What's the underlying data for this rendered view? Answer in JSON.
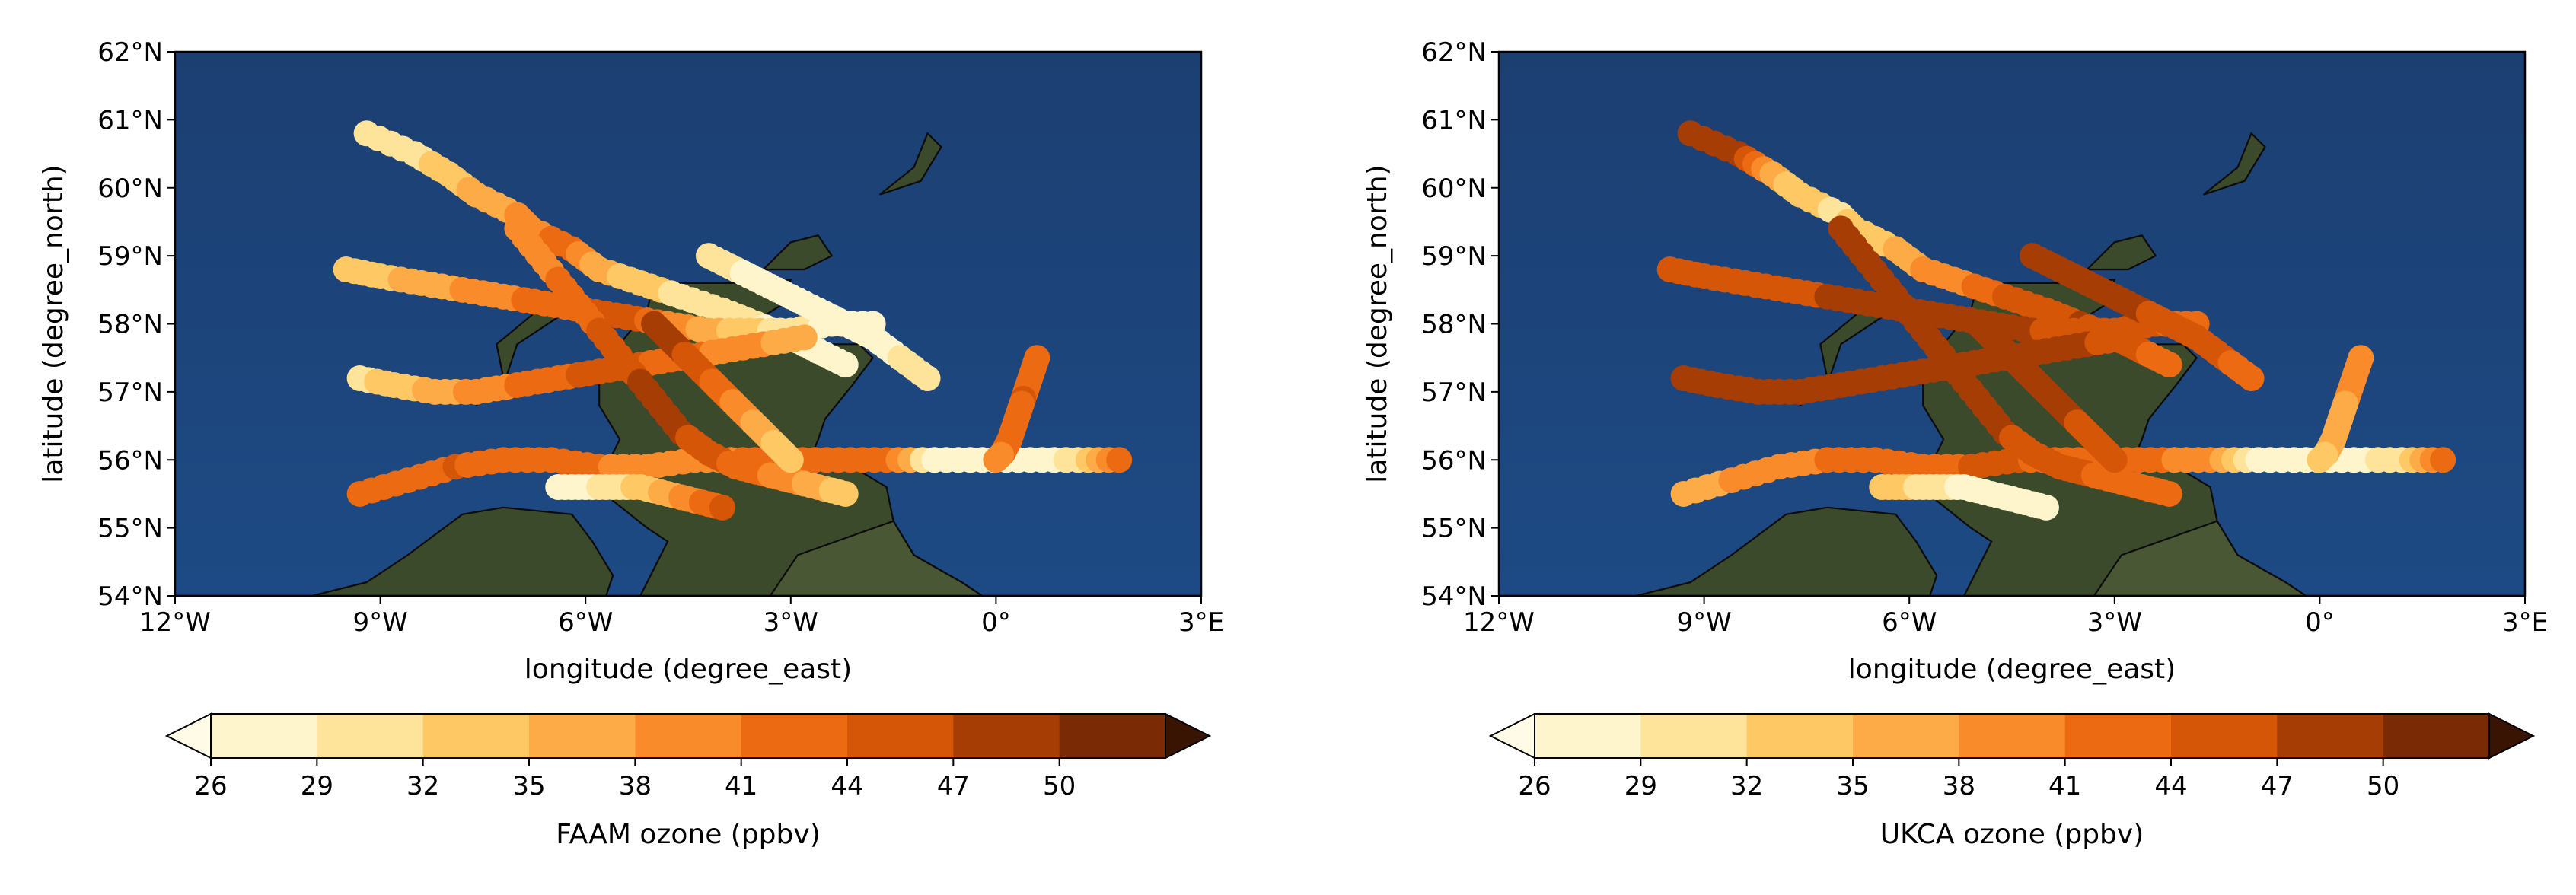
{
  "chart_data": [
    {
      "type": "scatter",
      "map": true,
      "xlabel": "longitude (degree_east)",
      "ylabel": "latitude (degree_north)",
      "xlim": [
        -12,
        3
      ],
      "ylim": [
        54,
        62
      ],
      "xticks": [
        -12,
        -9,
        -6,
        -3,
        0,
        3
      ],
      "xtick_labels": [
        "12°W",
        "9°W",
        "6°W",
        "3°W",
        "0°",
        "3°E"
      ],
      "yticks": [
        54,
        55,
        56,
        57,
        58,
        59,
        60,
        61,
        62
      ],
      "ytick_labels": [
        "54°N",
        "55°N",
        "56°N",
        "57°N",
        "58°N",
        "59°N",
        "60°N",
        "61°N",
        "62°N"
      ],
      "colorbar": {
        "label": "FAAM ozone (ppbv)",
        "levels": [
          26,
          29,
          32,
          35,
          38,
          41,
          44,
          47,
          50
        ],
        "tick_labels": [
          "26",
          "29",
          "32",
          "35",
          "38",
          "41",
          "44",
          "47",
          "50"
        ],
        "colors": [
          "#fff5cc",
          "#fee39b",
          "#fec965",
          "#fdab46",
          "#f98b2a",
          "#ec6b12",
          "#d55607",
          "#a63d05",
          "#7a2a04"
        ],
        "extend": "both"
      },
      "series": [
        {
          "lon": [
            -9.2,
            -8.5,
            -8.0,
            -7.6,
            -7.0,
            -6.8,
            -6.2,
            -5.8,
            -5.2,
            -4.6,
            -4.0,
            -3.5,
            -3.0,
            -2.6,
            -2.2
          ],
          "lat": [
            60.8,
            60.5,
            60.2,
            59.9,
            59.6,
            59.4,
            59.1,
            58.8,
            58.6,
            58.4,
            58.2,
            58.0,
            57.8,
            57.6,
            57.4
          ],
          "ozone": [
            29,
            31,
            33,
            36,
            38,
            40,
            42,
            36,
            33,
            31,
            30,
            29,
            28,
            27,
            27
          ]
        },
        {
          "lon": [
            -9.5,
            -9.0,
            -8.4,
            -7.8,
            -7.2,
            -6.6,
            -6.0,
            -5.4,
            -4.8,
            -4.2,
            -3.6,
            -3.0,
            -2.4,
            -1.8
          ],
          "lat": [
            58.8,
            58.7,
            58.6,
            58.5,
            58.4,
            58.3,
            58.2,
            58.1,
            58.0,
            57.9,
            57.9,
            57.9,
            58.0,
            58.0
          ],
          "ozone": [
            33,
            34,
            36,
            38,
            40,
            42,
            44,
            46,
            40,
            36,
            33,
            30,
            28,
            27
          ]
        },
        {
          "lon": [
            -9.3,
            -8.8,
            -8.2,
            -7.6,
            -7.0,
            -6.4,
            -5.8,
            -5.2,
            -4.6,
            -4.0,
            -3.4,
            -2.8
          ],
          "lat": [
            57.2,
            57.1,
            57.0,
            57.0,
            57.1,
            57.2,
            57.3,
            57.4,
            57.5,
            57.6,
            57.7,
            57.8
          ],
          "ozone": [
            31,
            33,
            36,
            39,
            41,
            43,
            45,
            44,
            42,
            40,
            38,
            36
          ]
        },
        {
          "lon": [
            -9.3,
            -8.6,
            -7.9,
            -7.2,
            -6.5,
            -5.8,
            -5.1,
            -4.4,
            -3.7,
            -3.0,
            -2.3,
            -1.6,
            -0.9,
            -0.2,
            0.5,
            1.2,
            1.8
          ],
          "lat": [
            55.5,
            55.7,
            55.9,
            56.0,
            56.0,
            55.9,
            55.9,
            56.0,
            56.0,
            56.0,
            56.0,
            56.0,
            56.0,
            56.0,
            56.0,
            56.0,
            56.0
          ],
          "ozone": [
            42,
            43,
            44,
            43,
            42,
            41,
            40,
            40,
            41,
            42,
            42,
            43,
            28,
            27,
            27,
            30,
            43
          ]
        },
        {
          "lon": [
            -7.0,
            -6.6,
            -6.2,
            -5.8,
            -5.4,
            -5.0,
            -4.6,
            -4.2,
            -3.8,
            -3.4,
            -3.0,
            -2.6,
            -2.2
          ],
          "lat": [
            59.4,
            58.9,
            58.4,
            57.9,
            57.4,
            56.9,
            56.4,
            56.1,
            55.9,
            55.8,
            55.7,
            55.6,
            55.5
          ],
          "ozone": [
            38,
            40,
            42,
            44,
            46,
            48,
            47,
            45,
            43,
            41,
            39,
            36,
            33
          ]
        },
        {
          "lon": [
            -4.2,
            -3.8,
            -3.4,
            -3.0,
            -2.6,
            -2.2,
            -1.8,
            -1.4,
            -1.0
          ],
          "lat": [
            59.0,
            58.8,
            58.6,
            58.4,
            58.2,
            58.0,
            57.8,
            57.5,
            57.2
          ],
          "ozone": [
            30,
            29,
            28,
            28,
            27,
            27,
            28,
            29,
            30
          ]
        },
        {
          "lon": [
            0.6,
            0.5,
            0.4,
            0.3,
            0.2,
            0.1,
            0.0
          ],
          "lat": [
            57.5,
            57.2,
            56.9,
            56.6,
            56.3,
            56.1,
            56.0
          ],
          "ozone": [
            43,
            43,
            44,
            43,
            42,
            41,
            40
          ]
        },
        {
          "lon": [
            -5.0,
            -4.8,
            -4.6,
            -4.4,
            -4.2,
            -4.0,
            -3.8,
            -3.6,
            -3.4,
            -3.2,
            -3.0
          ],
          "lat": [
            58.0,
            57.8,
            57.6,
            57.4,
            57.2,
            57.0,
            56.8,
            56.6,
            56.4,
            56.2,
            56.0
          ],
          "ozone": [
            48,
            48,
            47,
            46,
            44,
            42,
            40,
            38,
            36,
            34,
            32
          ]
        },
        {
          "lon": [
            -6.4,
            -6.0,
            -5.6,
            -5.2,
            -4.8,
            -4.4,
            -4.0
          ],
          "lat": [
            55.6,
            55.6,
            55.6,
            55.6,
            55.5,
            55.4,
            55.3
          ],
          "ozone": [
            27,
            28,
            30,
            33,
            36,
            40,
            44
          ]
        }
      ]
    },
    {
      "type": "scatter",
      "map": true,
      "xlabel": "longitude (degree_east)",
      "ylabel": "latitude (degree_north)",
      "xlim": [
        -12,
        3
      ],
      "ylim": [
        54,
        62
      ],
      "xticks": [
        -12,
        -9,
        -6,
        -3,
        0,
        3
      ],
      "xtick_labels": [
        "12°W",
        "9°W",
        "6°W",
        "3°W",
        "0°",
        "3°E"
      ],
      "yticks": [
        54,
        55,
        56,
        57,
        58,
        59,
        60,
        61,
        62
      ],
      "ytick_labels": [
        "54°N",
        "55°N",
        "56°N",
        "57°N",
        "58°N",
        "59°N",
        "60°N",
        "61°N",
        "62°N"
      ],
      "colorbar": {
        "label": "UKCA ozone (ppbv)",
        "levels": [
          26,
          29,
          32,
          35,
          38,
          41,
          44,
          47,
          50
        ],
        "tick_labels": [
          "26",
          "29",
          "32",
          "35",
          "38",
          "41",
          "44",
          "47",
          "50"
        ],
        "colors": [
          "#fff5cc",
          "#fee39b",
          "#fec965",
          "#fdab46",
          "#f98b2a",
          "#ec6b12",
          "#d55607",
          "#a63d05",
          "#7a2a04"
        ],
        "extend": "both"
      },
      "series": [
        {
          "lon": [
            -9.2,
            -8.5,
            -8.0,
            -7.6,
            -7.0,
            -6.8,
            -6.2,
            -5.8,
            -5.2,
            -4.6,
            -4.0,
            -3.5,
            -3.0,
            -2.6,
            -2.2
          ],
          "lat": [
            60.8,
            60.5,
            60.2,
            59.9,
            59.6,
            59.4,
            59.1,
            58.8,
            58.6,
            58.4,
            58.2,
            58.0,
            57.8,
            57.6,
            57.4
          ],
          "ozone": [
            48,
            47,
            36,
            33,
            31,
            33,
            35,
            38,
            40,
            44,
            46,
            47,
            45,
            44,
            43
          ]
        },
        {
          "lon": [
            -9.5,
            -9.0,
            -8.4,
            -7.8,
            -7.2,
            -6.6,
            -6.0,
            -5.4,
            -4.8,
            -4.2,
            -3.6,
            -3.0,
            -2.4,
            -1.8
          ],
          "lat": [
            58.8,
            58.7,
            58.6,
            58.5,
            58.4,
            58.3,
            58.2,
            58.1,
            58.0,
            57.9,
            57.9,
            57.9,
            58.0,
            58.0
          ],
          "ozone": [
            44,
            44,
            45,
            46,
            47,
            48,
            48,
            48,
            48,
            47,
            46,
            45,
            44,
            43
          ]
        },
        {
          "lon": [
            -9.3,
            -8.8,
            -8.2,
            -7.6,
            -7.0,
            -6.4,
            -5.8,
            -5.2,
            -4.6,
            -4.0,
            -3.4,
            -2.8
          ],
          "lat": [
            57.2,
            57.1,
            57.0,
            57.0,
            57.1,
            57.2,
            57.3,
            57.4,
            57.5,
            57.6,
            57.7,
            57.8
          ],
          "ozone": [
            48,
            48,
            48,
            48,
            48,
            48,
            48,
            48,
            48,
            48,
            47,
            46
          ]
        },
        {
          "lon": [
            -9.3,
            -8.6,
            -7.9,
            -7.2,
            -6.5,
            -5.8,
            -5.1,
            -4.4,
            -3.7,
            -3.0,
            -2.3,
            -1.6,
            -0.9,
            -0.2,
            0.5,
            1.2,
            1.8
          ],
          "lat": [
            55.5,
            55.7,
            55.9,
            56.0,
            56.0,
            55.9,
            55.9,
            56.0,
            56.0,
            56.0,
            56.0,
            56.0,
            56.0,
            56.0,
            56.0,
            56.0,
            56.0
          ],
          "ozone": [
            36,
            38,
            40,
            41,
            42,
            43,
            44,
            44,
            43,
            42,
            41,
            40,
            28,
            27,
            27,
            31,
            42
          ]
        },
        {
          "lon": [
            -7.0,
            -6.6,
            -6.2,
            -5.8,
            -5.4,
            -5.0,
            -4.6,
            -4.2,
            -3.8,
            -3.4,
            -3.0,
            -2.6,
            -2.2
          ],
          "lat": [
            59.4,
            58.9,
            58.4,
            57.9,
            57.4,
            56.9,
            56.4,
            56.1,
            55.9,
            55.8,
            55.7,
            55.6,
            55.5
          ],
          "ozone": [
            48,
            48,
            48,
            48,
            48,
            48,
            47,
            46,
            45,
            44,
            43,
            42,
            41
          ]
        },
        {
          "lon": [
            -4.2,
            -3.8,
            -3.4,
            -3.0,
            -2.6,
            -2.2,
            -1.8,
            -1.4,
            -1.0
          ],
          "lat": [
            59.0,
            58.8,
            58.6,
            58.4,
            58.2,
            58.0,
            57.8,
            57.5,
            57.2
          ],
          "ozone": [
            48,
            48,
            48,
            48,
            47,
            46,
            45,
            44,
            43
          ]
        },
        {
          "lon": [
            0.6,
            0.5,
            0.4,
            0.3,
            0.2,
            0.1,
            0.0
          ],
          "lat": [
            57.5,
            57.2,
            56.9,
            56.6,
            56.3,
            56.1,
            56.0
          ],
          "ozone": [
            40,
            39,
            38,
            37,
            36,
            35,
            34
          ]
        },
        {
          "lon": [
            -5.0,
            -4.8,
            -4.6,
            -4.4,
            -4.2,
            -4.0,
            -3.8,
            -3.6,
            -3.4,
            -3.2,
            -3.0
          ],
          "lat": [
            58.0,
            57.8,
            57.6,
            57.4,
            57.2,
            57.0,
            56.8,
            56.6,
            56.4,
            56.2,
            56.0
          ],
          "ozone": [
            48,
            48,
            48,
            48,
            48,
            48,
            48,
            47,
            46,
            45,
            44
          ]
        },
        {
          "lon": [
            -6.4,
            -6.0,
            -5.6,
            -5.2,
            -4.8,
            -4.4,
            -4.0
          ],
          "lat": [
            55.6,
            55.6,
            55.6,
            55.6,
            55.5,
            55.4,
            55.3
          ],
          "ozone": [
            34,
            32,
            30,
            28,
            27,
            27,
            28
          ]
        }
      ]
    }
  ]
}
